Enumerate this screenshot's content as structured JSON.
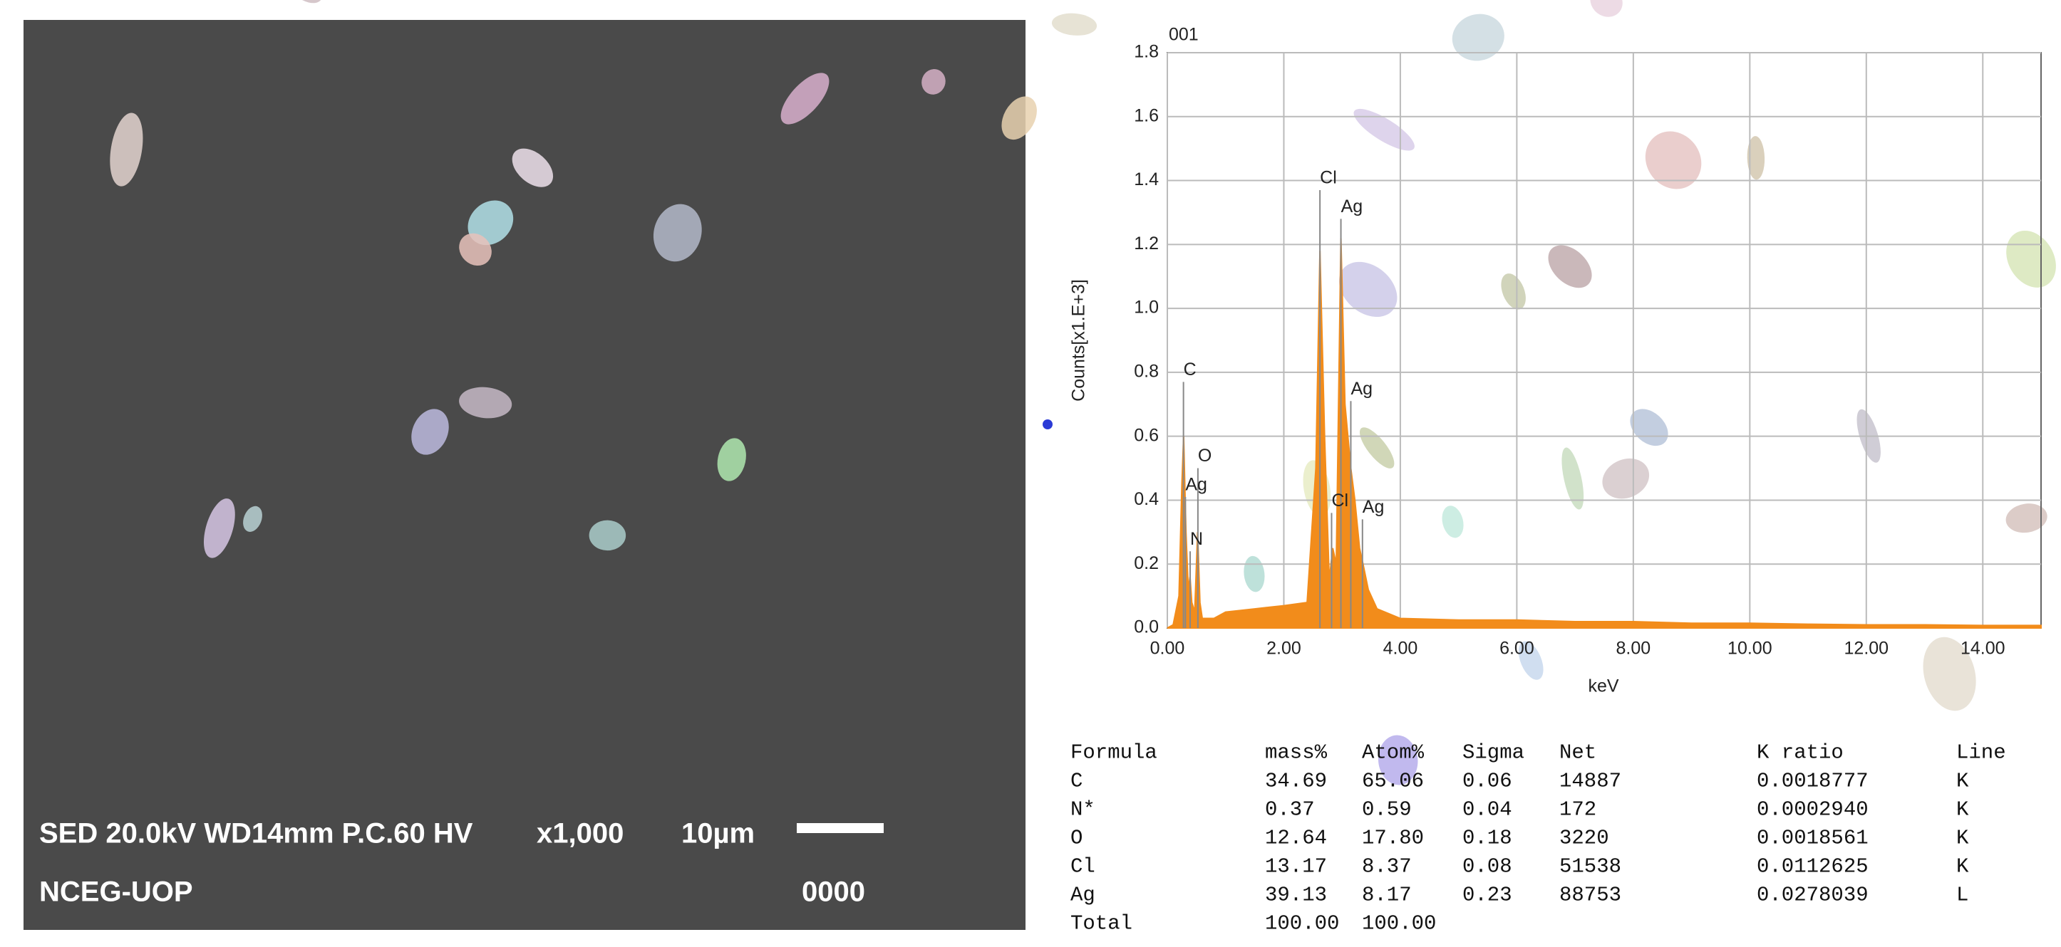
{
  "sem_image": {
    "info": "SED 20.0kV WD14mm P.C.60 HV",
    "magnification": "x1,000",
    "scale": "10µm",
    "lab": "NCEG-UOP",
    "number": "0000"
  },
  "chart_data": {
    "type": "area",
    "title": "001",
    "x_label": "keV",
    "y_label": "Counts[x1.E+3]",
    "color": "#f28c1b",
    "x": [
      0,
      0.1,
      0.2,
      0.25,
      0.28,
      0.32,
      0.36,
      0.39,
      0.42,
      0.47,
      0.52,
      0.56,
      0.6,
      0.8,
      1.0,
      1.5,
      2.0,
      2.4,
      2.55,
      2.62,
      2.7,
      2.78,
      2.84,
      2.9,
      2.98,
      3.05,
      3.1,
      3.15,
      3.22,
      3.3,
      3.36,
      3.45,
      3.6,
      4.0,
      5,
      6,
      7,
      8,
      9,
      10,
      11,
      12,
      13,
      14,
      15
    ],
    "values": [
      0.0,
      0.01,
      0.1,
      0.45,
      0.6,
      0.3,
      0.12,
      0.16,
      0.08,
      0.05,
      0.3,
      0.08,
      0.03,
      0.03,
      0.05,
      0.06,
      0.07,
      0.08,
      0.5,
      1.18,
      0.6,
      0.15,
      0.25,
      0.2,
      1.22,
      0.7,
      0.6,
      0.5,
      0.4,
      0.25,
      0.2,
      0.12,
      0.06,
      0.03,
      0.025,
      0.025,
      0.02,
      0.02,
      0.015,
      0.015,
      0.012,
      0.01,
      0.01,
      0.008,
      0.008
    ],
    "peaks": [
      {
        "label": "C",
        "x": 0.277,
        "y": 0.77
      },
      {
        "label": "O",
        "x": 0.525,
        "y": 0.5
      },
      {
        "label": "Ag",
        "x": 0.31,
        "y": 0.41
      },
      {
        "label": "N",
        "x": 0.392,
        "y": 0.24
      },
      {
        "label": "Cl",
        "x": 2.62,
        "y": 1.37
      },
      {
        "label": "Ag",
        "x": 2.98,
        "y": 1.28
      },
      {
        "label": "Ag",
        "x": 3.15,
        "y": 0.71
      },
      {
        "label": "Cl",
        "x": 2.82,
        "y": 0.36
      },
      {
        "label": "Ag",
        "x": 3.35,
        "y": 0.34
      }
    ],
    "xlim": [
      0,
      15
    ],
    "ylim": [
      0,
      1.8
    ],
    "xticks": [
      {
        "value": 0,
        "label": "0.00"
      },
      {
        "value": 2,
        "label": "2.00"
      },
      {
        "value": 4,
        "label": "4.00"
      },
      {
        "value": 6,
        "label": "6.00"
      },
      {
        "value": 8,
        "label": "8.00"
      },
      {
        "value": 10,
        "label": "10.00"
      },
      {
        "value": 12,
        "label": "12.00"
      },
      {
        "value": 14,
        "label": "14.00"
      }
    ],
    "yticks": [
      {
        "value": 0,
        "label": "0.0"
      },
      0.2,
      0.4,
      0.6,
      0.8,
      {
        "value": 1,
        "label": "1.0"
      },
      1.2,
      1.4,
      1.6,
      1.8
    ],
    "grid": true
  },
  "table": {
    "header": [
      "Formula",
      "mass%",
      "Atom%",
      "Sigma",
      "Net",
      "K ratio",
      "Line"
    ],
    "rows": [
      [
        "C",
        "34.69",
        "65.06",
        "0.06",
        "14887",
        "0.0018777",
        "K"
      ],
      [
        "N*",
        "0.37",
        "0.59",
        "0.04",
        "172",
        "0.0002940",
        "K"
      ],
      [
        "O",
        "12.64",
        "17.80",
        "0.18",
        "3220",
        "0.0018561",
        "K"
      ],
      [
        "Cl",
        "13.17",
        "8.37",
        "0.08",
        "51538",
        "0.0112625",
        "K"
      ],
      [
        "Ag",
        "39.13",
        "8.17",
        "0.23",
        "88753",
        "0.0278039",
        "L"
      ],
      [
        "Total",
        "100.00",
        "100.00"
      ]
    ]
  }
}
